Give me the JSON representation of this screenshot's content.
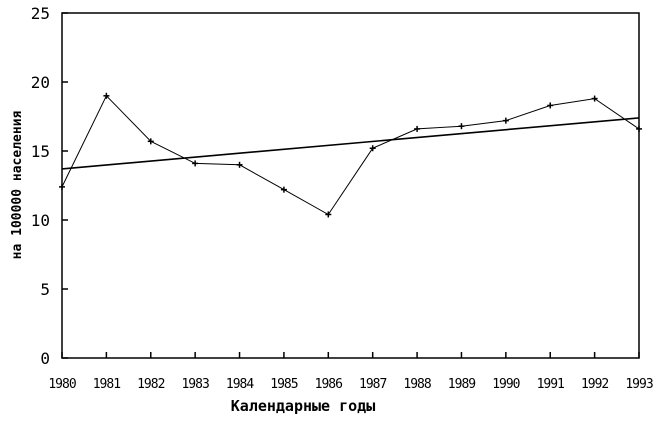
{
  "chart_data": {
    "type": "line",
    "xlabel": "Календарные годы",
    "ylabel": "на 100000 населения",
    "xlim": [
      1980,
      1993
    ],
    "ylim": [
      0,
      25
    ],
    "x_ticks": [
      1980,
      1981,
      1982,
      1983,
      1984,
      1985,
      1986,
      1987,
      1988,
      1989,
      1990,
      1991,
      1992,
      1993
    ],
    "y_ticks": [
      0,
      5,
      10,
      15,
      20,
      25
    ],
    "grid": false,
    "series": [
      {
        "style": "markers-line",
        "x": [
          1980,
          1981,
          1982,
          1983,
          1984,
          1985,
          1986,
          1987,
          1988,
          1989,
          1990,
          1991,
          1992,
          1993
        ],
        "values": [
          12.4,
          19.0,
          15.7,
          14.1,
          14.0,
          12.2,
          10.4,
          15.2,
          16.6,
          16.8,
          17.2,
          18.3,
          18.8,
          16.6
        ]
      },
      {
        "style": "trend-line",
        "x": [
          1980,
          1993
        ],
        "values": [
          13.7,
          17.4
        ]
      }
    ]
  }
}
